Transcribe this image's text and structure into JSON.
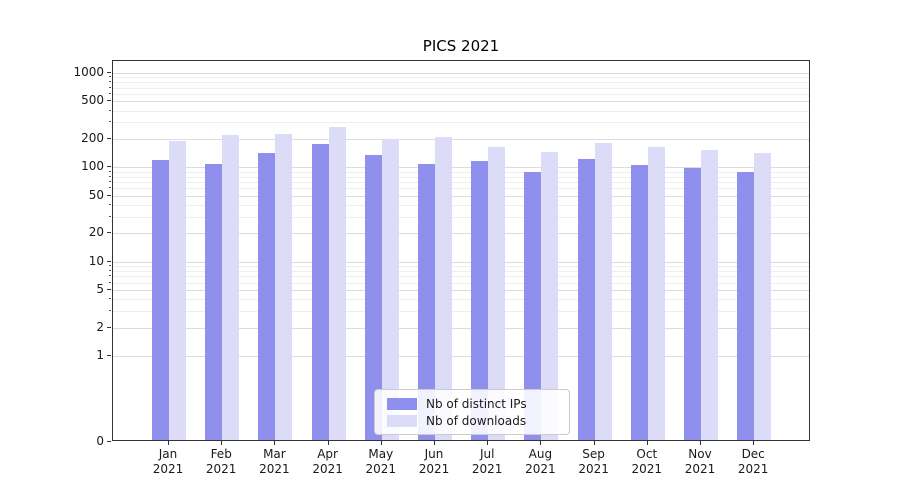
{
  "chart_data": {
    "type": "bar",
    "title": "PICS 2021",
    "scale": "symlog",
    "grid": true,
    "legend_position": "lower center",
    "categories": [
      "Jan 2021",
      "Feb 2021",
      "Mar 2021",
      "Apr 2021",
      "May 2021",
      "Jun 2021",
      "Jul 2021",
      "Aug 2021",
      "Sep 2021",
      "Oct 2021",
      "Nov 2021",
      "Dec 2021"
    ],
    "series": [
      {
        "name": "Nb of distinct IPs",
        "color": "#8f90ee",
        "values": [
          114,
          103,
          135,
          168,
          130,
          103,
          111,
          86,
          117,
          101,
          93,
          86
        ]
      },
      {
        "name": "Nb of downloads",
        "color": "#dcdcf9",
        "values": [
          182,
          212,
          215,
          258,
          192,
          200,
          158,
          138,
          173,
          158,
          145,
          136
        ]
      }
    ],
    "y_ticks": [
      1000,
      500,
      200,
      100,
      50,
      20,
      10,
      5,
      2,
      1,
      0
    ],
    "ylim": [
      0,
      1400
    ],
    "xlabel": "",
    "ylabel": ""
  }
}
